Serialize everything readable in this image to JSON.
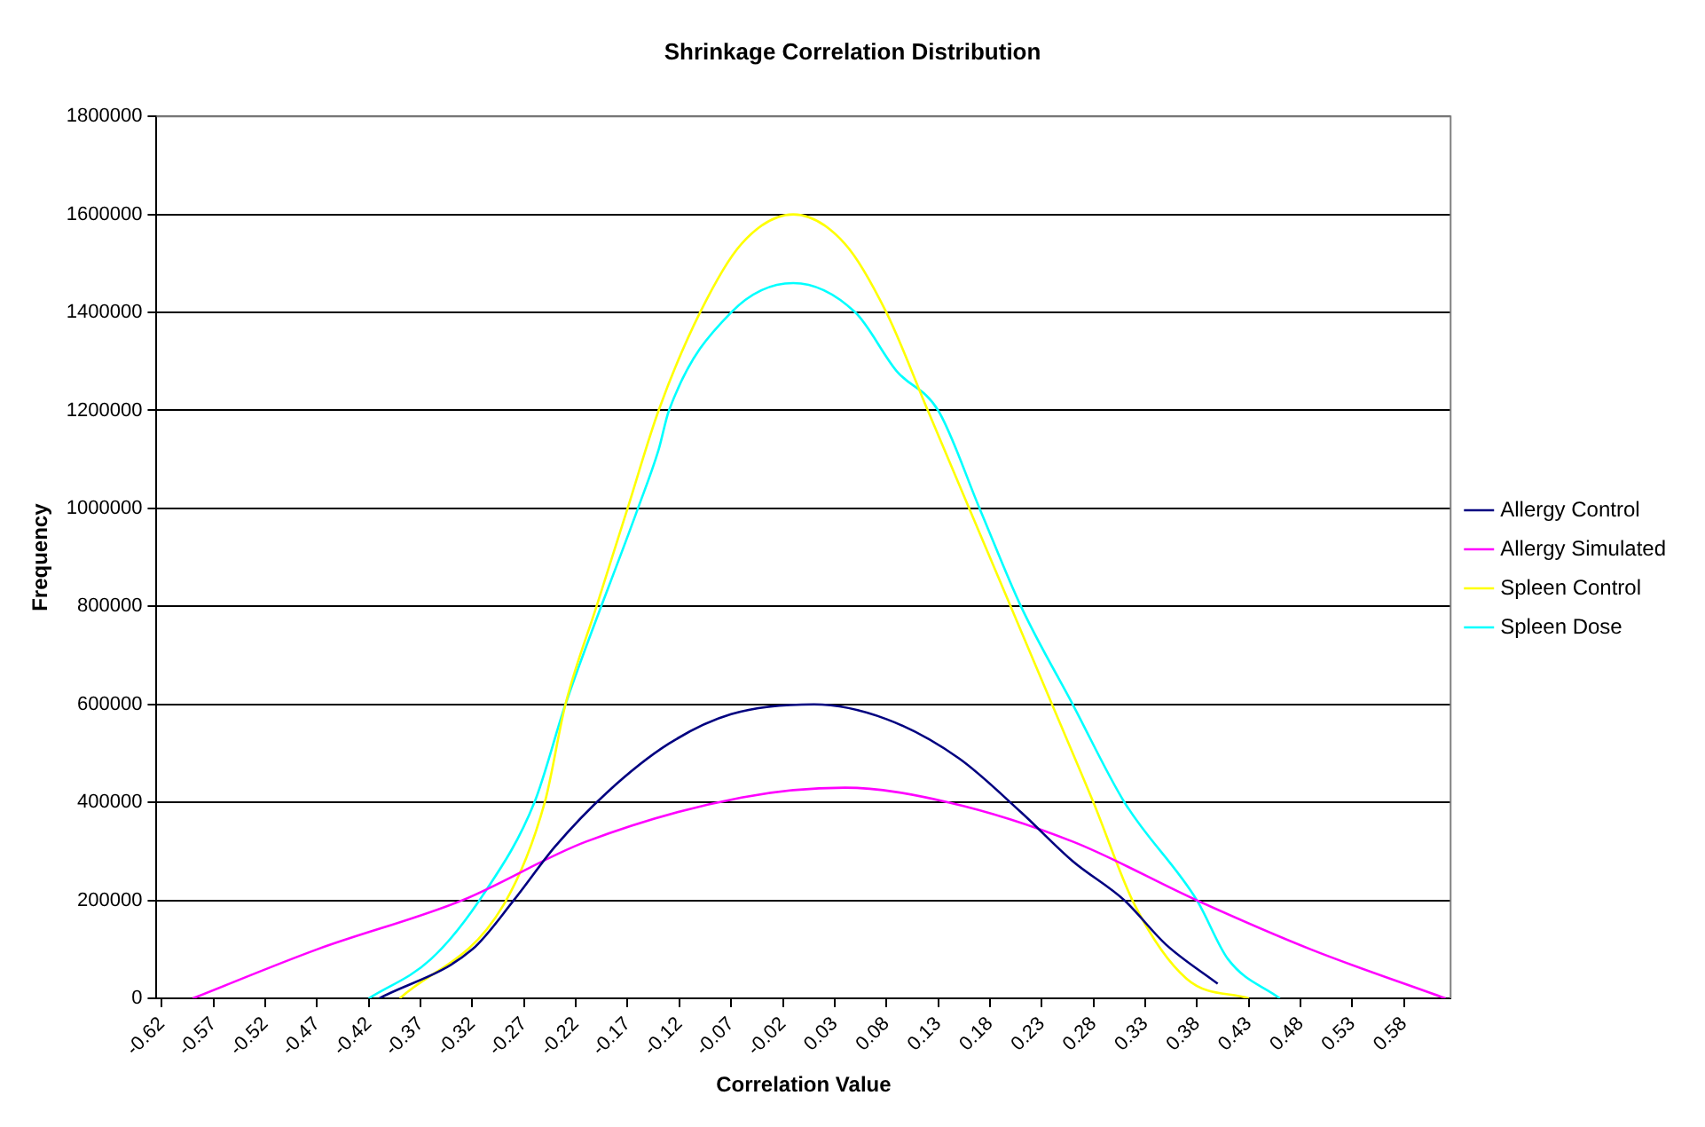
{
  "chart_data": {
    "type": "line",
    "title": "Shrinkage Correlation Distribution",
    "xlabel": "Correlation Value",
    "ylabel": "Frequency",
    "xlim": [
      -0.625,
      0.625
    ],
    "xticks": [
      {
        "value": -0.62,
        "label": "-0.62"
      },
      {
        "value": -0.57,
        "label": "-0.57"
      },
      {
        "value": -0.52,
        "label": "-0.52"
      },
      {
        "value": -0.47,
        "label": "-0.47"
      },
      {
        "value": -0.42,
        "label": "-0.42"
      },
      {
        "value": -0.37,
        "label": "-0.37"
      },
      {
        "value": -0.32,
        "label": "-0.32"
      },
      {
        "value": -0.27,
        "label": "-0.27"
      },
      {
        "value": -0.22,
        "label": "-0.22"
      },
      {
        "value": -0.17,
        "label": "-0.17"
      },
      {
        "value": -0.12,
        "label": "-0.12"
      },
      {
        "value": -0.07,
        "label": "-0.07"
      },
      {
        "value": -0.02,
        "label": "-0.02"
      },
      {
        "value": 0.03,
        "label": "0.03"
      },
      {
        "value": 0.08,
        "label": "0.08"
      },
      {
        "value": 0.13,
        "label": "0.13"
      },
      {
        "value": 0.18,
        "label": "0.18"
      },
      {
        "value": 0.23,
        "label": "0.23"
      },
      {
        "value": 0.28,
        "label": "0.28"
      },
      {
        "value": 0.33,
        "label": "0.33"
      },
      {
        "value": 0.38,
        "label": "0.38"
      },
      {
        "value": 0.43,
        "label": "0.43"
      },
      {
        "value": 0.48,
        "label": "0.48"
      },
      {
        "value": 0.53,
        "label": "0.53"
      },
      {
        "value": 0.58,
        "label": "0.58"
      }
    ],
    "ylim": [
      0,
      1800000
    ],
    "yticks": [
      0,
      200000,
      400000,
      600000,
      800000,
      1000000,
      1200000,
      1400000,
      1600000,
      1800000
    ],
    "grid": "y",
    "legend": "right",
    "marker": "none",
    "line_style": "solid",
    "series": [
      {
        "name": "Allergy Control",
        "color": "#000080",
        "x": [
          -0.41,
          -0.32,
          -0.28,
          -0.24,
          -0.19,
          -0.13,
          -0.07,
          0.01,
          0.08,
          0.15,
          0.21,
          0.26,
          0.31,
          0.35,
          0.4
        ],
        "values": [
          0,
          100000,
          200000,
          310000,
          420000,
          520000,
          580000,
          600000,
          570000,
          490000,
          380000,
          280000,
          200000,
          110000,
          30000
        ]
      },
      {
        "name": "Allergy Simulated",
        "color": "#ff00ff",
        "x": [
          -0.59,
          -0.47,
          -0.33,
          -0.21,
          -0.06,
          0.04,
          0.14,
          0.26,
          0.38,
          0.49,
          0.62
        ],
        "values": [
          0,
          100000,
          200000,
          320000,
          410000,
          430000,
          400000,
          320000,
          200000,
          100000,
          0
        ]
      },
      {
        "name": "Spleen Control",
        "color": "#ffff00",
        "x": [
          -0.39,
          -0.29,
          -0.25,
          -0.23,
          -0.2,
          -0.17,
          -0.14,
          -0.1,
          -0.06,
          -0.01,
          0.04,
          0.08,
          0.12,
          0.16,
          0.2,
          0.24,
          0.28,
          0.32,
          0.37,
          0.43
        ],
        "values": [
          0,
          190000,
          400000,
          600000,
          800000,
          1000000,
          1200000,
          1400000,
          1540000,
          1600000,
          1540000,
          1400000,
          1200000,
          1000000,
          800000,
          600000,
          400000,
          190000,
          40000,
          0
        ]
      },
      {
        "name": "Spleen Dose",
        "color": "#00ffff",
        "x": [
          -0.42,
          -0.36,
          -0.31,
          -0.26,
          -0.23,
          -0.16,
          -0.14,
          -0.13,
          -0.07,
          -0.01,
          0.05,
          0.09,
          0.13,
          0.17,
          0.21,
          0.26,
          0.31,
          0.38,
          0.41,
          0.46
        ],
        "values": [
          0,
          80000,
          210000,
          400000,
          600000,
          1000000,
          1120000,
          1200000,
          1400000,
          1460000,
          1400000,
          1280000,
          1200000,
          1000000,
          800000,
          600000,
          400000,
          200000,
          80000,
          0
        ]
      }
    ]
  }
}
